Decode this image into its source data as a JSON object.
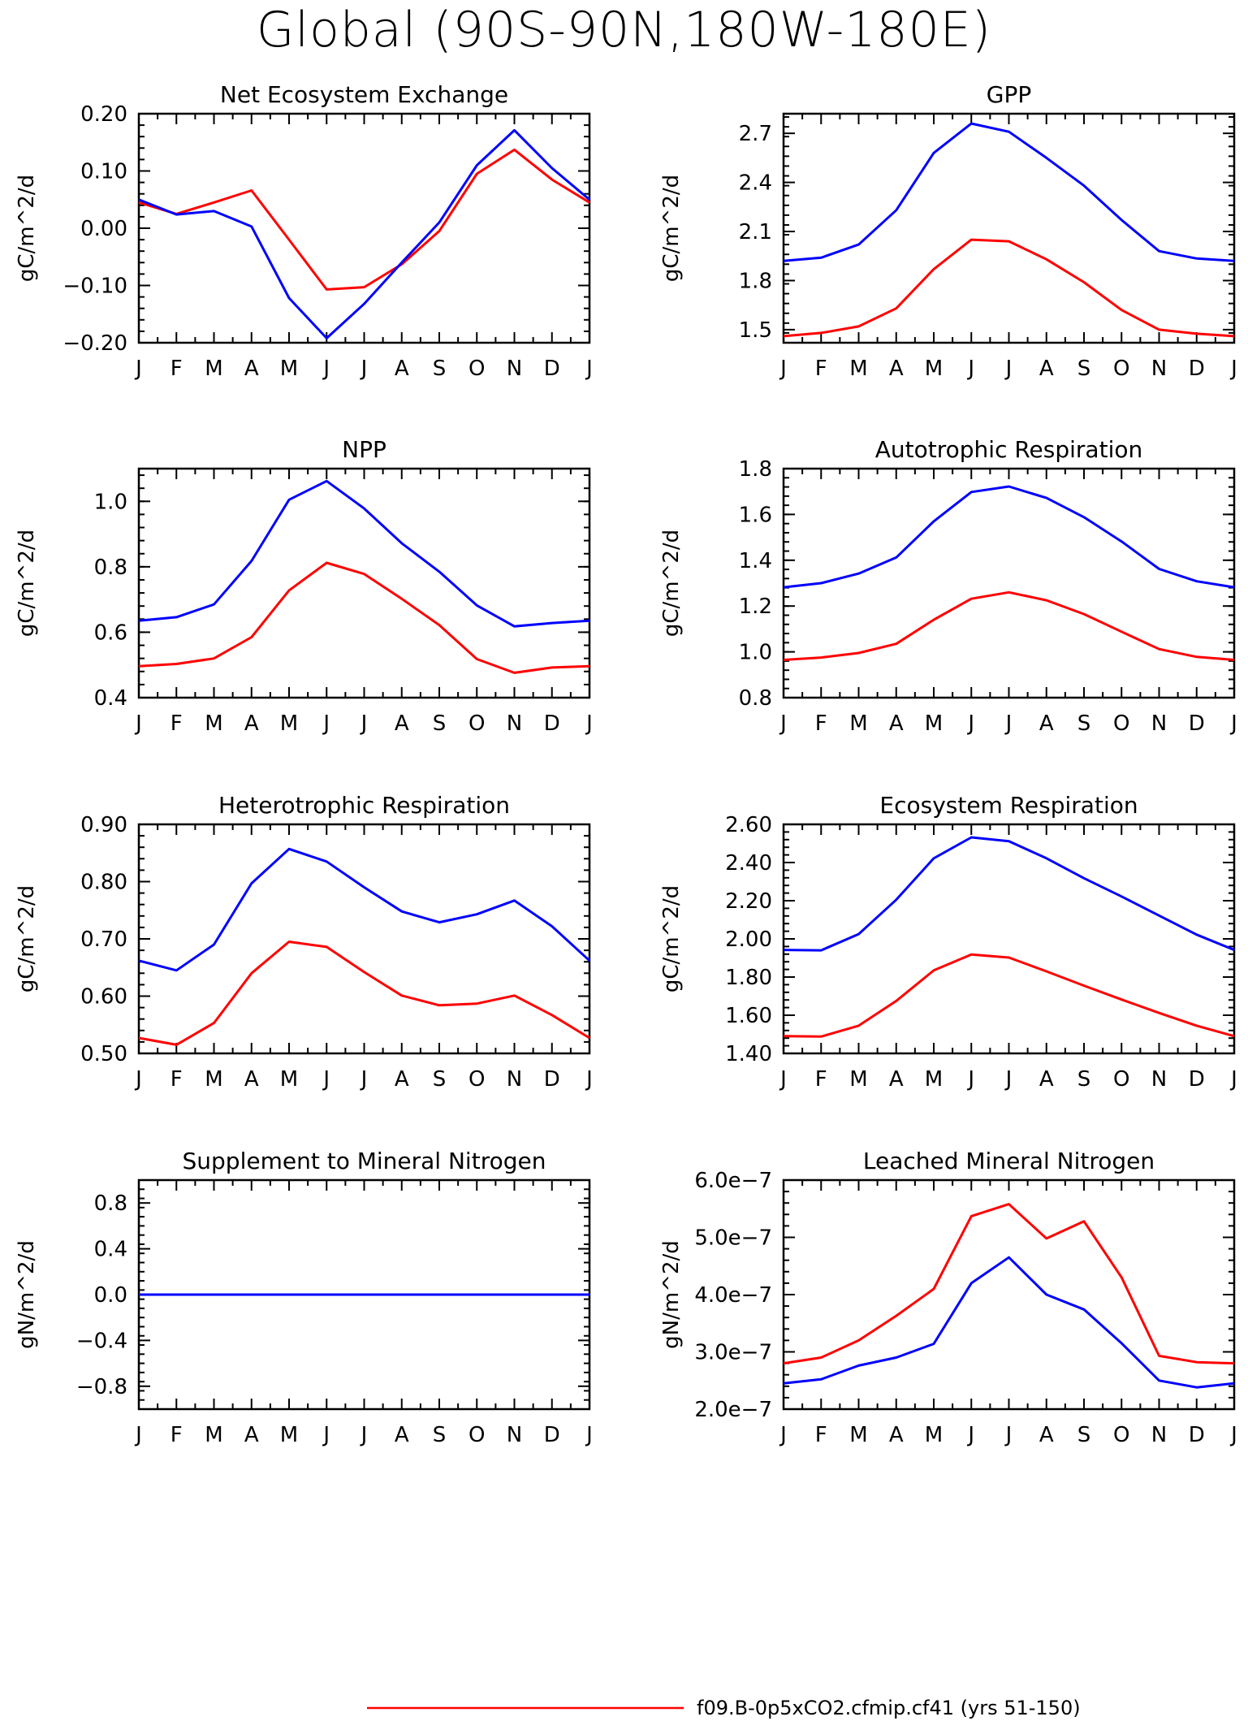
{
  "main_title": "Global (90S-90N,180W-180E)",
  "colors": {
    "series_a": "#ff0000",
    "series_b": "#0000ff",
    "axes": "#000000"
  },
  "legend": [
    {
      "label": "f09.B-0p5xCO2.cfmip.cf41 (yrs 51-150)",
      "color": "#ff0000"
    }
  ],
  "chart_data": [
    {
      "type": "line",
      "title": "Net Ecosystem Exchange",
      "ylabel": "gC/m^2/d",
      "x": [
        "J",
        "F",
        "M",
        "A",
        "M",
        "J",
        "J",
        "A",
        "S",
        "O",
        "N",
        "D",
        "J"
      ],
      "ylim": [
        -0.2,
        0.2
      ],
      "yticks": [
        "-0.20",
        "-0.10",
        "0.00",
        "0.10",
        "0.20"
      ],
      "ytick_values": [
        -0.2,
        -0.1,
        0.0,
        0.1,
        0.2
      ],
      "series": [
        {
          "color": "#ff0000",
          "values": [
            0.045,
            0.025,
            0.045,
            0.066,
            -0.02,
            -0.107,
            -0.103,
            -0.063,
            -0.005,
            0.095,
            0.137,
            0.085,
            0.045
          ]
        },
        {
          "color": "#0000ff",
          "values": [
            0.05,
            0.024,
            0.03,
            0.003,
            -0.122,
            -0.192,
            -0.132,
            -0.06,
            0.01,
            0.11,
            0.171,
            0.105,
            0.05
          ]
        }
      ]
    },
    {
      "type": "line",
      "title": "GPP",
      "ylabel": "gC/m^2/d",
      "x": [
        "J",
        "F",
        "M",
        "A",
        "M",
        "J",
        "J",
        "A",
        "S",
        "O",
        "N",
        "D",
        "J"
      ],
      "ylim": [
        1.42,
        2.82
      ],
      "yticks": [
        "1.5",
        "1.8",
        "2.1",
        "2.4",
        "2.7"
      ],
      "ytick_values": [
        1.5,
        1.8,
        2.1,
        2.4,
        2.7
      ],
      "series": [
        {
          "color": "#ff0000",
          "values": [
            1.46,
            1.48,
            1.52,
            1.63,
            1.87,
            2.05,
            2.04,
            1.93,
            1.79,
            1.62,
            1.5,
            1.475,
            1.46
          ]
        },
        {
          "color": "#0000ff",
          "values": [
            1.92,
            1.94,
            2.02,
            2.23,
            2.58,
            2.76,
            2.71,
            2.55,
            2.38,
            2.17,
            1.98,
            1.935,
            1.92
          ]
        }
      ]
    },
    {
      "type": "line",
      "title": "NPP",
      "ylabel": "gC/m^2/d",
      "x": [
        "J",
        "F",
        "M",
        "A",
        "M",
        "J",
        "J",
        "A",
        "S",
        "O",
        "N",
        "D",
        "J"
      ],
      "ylim": [
        0.4,
        1.1
      ],
      "yticks": [
        "0.4",
        "0.6",
        "0.8",
        "1.0"
      ],
      "ytick_values": [
        0.4,
        0.6,
        0.8,
        1.0
      ],
      "series": [
        {
          "color": "#ff0000",
          "values": [
            0.496,
            0.503,
            0.52,
            0.585,
            0.728,
            0.812,
            0.778,
            0.702,
            0.622,
            0.518,
            0.476,
            0.492,
            0.496
          ]
        },
        {
          "color": "#0000ff",
          "values": [
            0.635,
            0.646,
            0.685,
            0.818,
            1.005,
            1.062,
            0.978,
            0.872,
            0.785,
            0.682,
            0.618,
            0.628,
            0.635
          ]
        }
      ]
    },
    {
      "type": "line",
      "title": "Autotrophic Respiration",
      "ylabel": "gC/m^2/d",
      "x": [
        "J",
        "F",
        "M",
        "A",
        "M",
        "J",
        "J",
        "A",
        "S",
        "O",
        "N",
        "D",
        "J"
      ],
      "ylim": [
        0.8,
        1.8
      ],
      "yticks": [
        "0.8",
        "1.0",
        "1.2",
        "1.4",
        "1.6",
        "1.8"
      ],
      "ytick_values": [
        0.8,
        1.0,
        1.2,
        1.4,
        1.6,
        1.8
      ],
      "series": [
        {
          "color": "#ff0000",
          "values": [
            0.965,
            0.975,
            0.995,
            1.035,
            1.14,
            1.232,
            1.26,
            1.225,
            1.165,
            1.088,
            1.012,
            0.978,
            0.965
          ]
        },
        {
          "color": "#0000ff",
          "values": [
            1.282,
            1.3,
            1.342,
            1.412,
            1.57,
            1.698,
            1.722,
            1.672,
            1.588,
            1.482,
            1.362,
            1.308,
            1.282
          ]
        }
      ]
    },
    {
      "type": "line",
      "title": "Heterotrophic Respiration",
      "ylabel": "gC/m^2/d",
      "x": [
        "J",
        "F",
        "M",
        "A",
        "M",
        "J",
        "J",
        "A",
        "S",
        "O",
        "N",
        "D",
        "J"
      ],
      "ylim": [
        0.5,
        0.9
      ],
      "yticks": [
        "0.50",
        "0.60",
        "0.70",
        "0.80",
        "0.90"
      ],
      "ytick_values": [
        0.5,
        0.6,
        0.7,
        0.8,
        0.9
      ],
      "series": [
        {
          "color": "#ff0000",
          "values": [
            0.527,
            0.515,
            0.553,
            0.64,
            0.695,
            0.686,
            0.642,
            0.601,
            0.584,
            0.587,
            0.601,
            0.567,
            0.527
          ]
        },
        {
          "color": "#0000ff",
          "values": [
            0.662,
            0.645,
            0.69,
            0.797,
            0.857,
            0.835,
            0.79,
            0.748,
            0.729,
            0.743,
            0.767,
            0.722,
            0.662
          ]
        }
      ]
    },
    {
      "type": "line",
      "title": "Ecosystem Respiration",
      "ylabel": "gC/m^2/d",
      "x": [
        "J",
        "F",
        "M",
        "A",
        "M",
        "J",
        "J",
        "A",
        "S",
        "O",
        "N",
        "D",
        "J"
      ],
      "ylim": [
        1.4,
        2.6
      ],
      "yticks": [
        "1.40",
        "1.60",
        "1.80",
        "2.00",
        "2.20",
        "2.40",
        "2.60"
      ],
      "ytick_values": [
        1.4,
        1.6,
        1.8,
        2.0,
        2.2,
        2.4,
        2.6
      ],
      "series": [
        {
          "color": "#ff0000",
          "values": [
            1.49,
            1.488,
            1.545,
            1.675,
            1.835,
            1.918,
            1.902,
            1.83,
            1.755,
            1.682,
            1.612,
            1.545,
            1.49
          ]
        },
        {
          "color": "#0000ff",
          "values": [
            1.942,
            1.94,
            2.025,
            2.205,
            2.422,
            2.532,
            2.512,
            2.422,
            2.318,
            2.222,
            2.122,
            2.022,
            1.942
          ]
        }
      ]
    },
    {
      "type": "line",
      "title": "Supplement to Mineral Nitrogen",
      "ylabel": "gN/m^2/d",
      "x": [
        "J",
        "F",
        "M",
        "A",
        "M",
        "J",
        "J",
        "A",
        "S",
        "O",
        "N",
        "D",
        "J"
      ],
      "ylim": [
        -1.0,
        1.0
      ],
      "yticks": [
        "-0.8",
        "-0.4",
        "0.0",
        "0.4",
        "0.8"
      ],
      "ytick_values": [
        -0.8,
        -0.4,
        0.0,
        0.4,
        0.8
      ],
      "series": [
        {
          "color": "#ff0000",
          "values": [
            0,
            0,
            0,
            0,
            0,
            0,
            0,
            0,
            0,
            0,
            0,
            0,
            0
          ]
        },
        {
          "color": "#0000ff",
          "values": [
            0,
            0,
            0,
            0,
            0,
            0,
            0,
            0,
            0,
            0,
            0,
            0,
            0
          ]
        }
      ]
    },
    {
      "type": "line",
      "title": "Leached Mineral Nitrogen",
      "ylabel": "gN/m^2/d",
      "x": [
        "J",
        "F",
        "M",
        "A",
        "M",
        "J",
        "J",
        "A",
        "S",
        "O",
        "N",
        "D",
        "J"
      ],
      "ylim": [
        2e-07,
        6e-07
      ],
      "yticks": [
        "2.0e-7",
        "3.0e-7",
        "4.0e-7",
        "5.0e-7",
        "6.0e-7"
      ],
      "ytick_values": [
        2e-07,
        3e-07,
        4e-07,
        5e-07,
        6e-07
      ],
      "series": [
        {
          "color": "#ff0000",
          "values": [
            2.8e-07,
            2.9e-07,
            3.2e-07,
            3.63e-07,
            4.1e-07,
            5.37e-07,
            5.58e-07,
            4.98e-07,
            5.28e-07,
            4.3e-07,
            2.93e-07,
            2.82e-07,
            2.8e-07
          ]
        },
        {
          "color": "#0000ff",
          "values": [
            2.45e-07,
            2.52e-07,
            2.76e-07,
            2.9e-07,
            3.14e-07,
            4.2e-07,
            4.65e-07,
            4e-07,
            3.74e-07,
            3.15e-07,
            2.5e-07,
            2.38e-07,
            2.45e-07
          ]
        }
      ]
    }
  ]
}
